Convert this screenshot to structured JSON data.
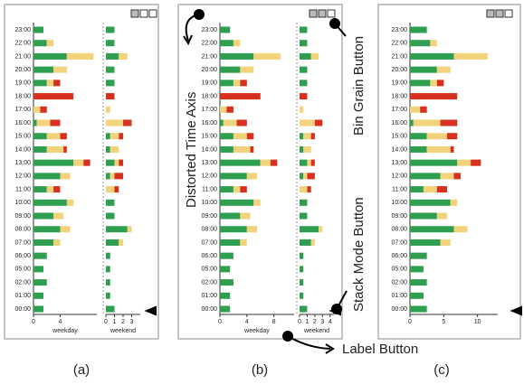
{
  "annotations": [
    "Distorted Time Axis",
    "Bin Grain Button",
    "Stack Mode Button",
    "Label Button"
  ],
  "panels": [
    {
      "caption": "(a)",
      "hours": [
        "23:00",
        "22:00",
        "21:00",
        "20:00",
        "19:00",
        "18:00",
        "17:00",
        "16:00",
        "15:00",
        "14:00",
        "13:00",
        "12:00",
        "11:00",
        "10:00",
        "09:00",
        "08:00",
        "07:00",
        "06:00",
        "05:00",
        "02:00",
        "01:00",
        "00:00"
      ],
      "plots": [
        {
          "axis_label": "weekday",
          "xlim": [
            0,
            9.5
          ],
          "xticks": [
            0,
            4
          ],
          "series": [
            {
              "color": "#2e9e4f",
              "values": [
                1.5,
                2,
                5,
                3,
                2,
                0,
                0,
                0.5,
                2,
                2,
                6,
                4,
                2,
                5,
                3,
                4,
                3,
                2,
                1.5,
                2,
                1.5,
                1.5
              ]
            },
            {
              "color": "#f2d27a",
              "values": [
                0,
                1,
                4,
                2,
                1,
                0,
                1,
                2,
                2,
                2.5,
                1.5,
                1.5,
                1,
                1,
                1.5,
                1.5,
                1,
                0,
                0,
                0,
                0,
                0
              ]
            },
            {
              "color": "#d7301f",
              "values": [
                0,
                0,
                0,
                0,
                1,
                6,
                1,
                1.5,
                1,
                0.5,
                1,
                0,
                1,
                0,
                0,
                0,
                0,
                0,
                0,
                0,
                0,
                0
              ]
            }
          ]
        },
        {
          "axis_label": "weekend",
          "xlim": [
            0,
            4
          ],
          "xticks": [
            0,
            1,
            2,
            3
          ],
          "series": [
            {
              "color": "#2e9e4f",
              "values": [
                1,
                1,
                1.5,
                1,
                1,
                0,
                0,
                0,
                0.5,
                0.5,
                1,
                0.5,
                0,
                1,
                1,
                2.5,
                1.5,
                0.5,
                0.5,
                0.5,
                0.5,
                1
              ]
            },
            {
              "color": "#f2d27a",
              "values": [
                0,
                0,
                1,
                0,
                0,
                0,
                0.5,
                2,
                1,
                1,
                0.5,
                0.5,
                1,
                0,
                0,
                0.5,
                0.5,
                0,
                0,
                0,
                0,
                0
              ]
            },
            {
              "color": "#d7301f",
              "values": [
                0,
                0,
                0,
                0,
                0,
                1,
                0,
                1,
                0.5,
                0,
                0.5,
                1,
                0.5,
                0,
                0,
                0,
                0,
                0,
                0,
                0,
                0,
                0
              ]
            }
          ]
        }
      ]
    },
    {
      "caption": "(b)",
      "hours": [
        "23:00",
        "22:00",
        "21:00",
        "20:00",
        "19:00",
        "18:00",
        "17:00",
        "16:00",
        "15:00",
        "14:00",
        "13:00",
        "12:00",
        "11:00",
        "10:00",
        "09:00",
        "08:00",
        "07:00",
        "06:00",
        "05:00",
        "02:00",
        "01:00",
        "00:00"
      ],
      "plots": [
        {
          "axis_label": "weekday",
          "xlim": [
            0,
            11
          ],
          "xticks": [
            0,
            4,
            8
          ],
          "series": [
            {
              "color": "#2e9e4f",
              "values": [
                1.5,
                2,
                5,
                3,
                2,
                0,
                0,
                0.5,
                2,
                2,
                6,
                4,
                2,
                5,
                3,
                4,
                3,
                2,
                1.5,
                2,
                1.5,
                1.5
              ]
            },
            {
              "color": "#f2d27a",
              "values": [
                0,
                1,
                4,
                2,
                1,
                0,
                1,
                2,
                2,
                2.5,
                1.5,
                1.5,
                1,
                1,
                1.5,
                1.5,
                1,
                0,
                0,
                0,
                0,
                0
              ]
            },
            {
              "color": "#d7301f",
              "values": [
                0,
                0,
                0,
                0,
                1,
                6,
                1,
                1.5,
                1,
                0.5,
                1,
                0,
                1,
                0,
                0,
                0,
                0,
                0,
                0,
                0,
                0,
                0
              ]
            }
          ]
        },
        {
          "axis_label": "weekend",
          "xlim": [
            0,
            4.5
          ],
          "xticks": [
            0,
            1,
            2,
            3,
            4
          ],
          "series": [
            {
              "color": "#2e9e4f",
              "values": [
                1,
                1,
                1.5,
                1,
                1,
                0,
                0,
                0,
                0.5,
                0.5,
                1,
                0.5,
                0,
                1,
                1,
                2.5,
                1.5,
                0.5,
                0.5,
                0.5,
                0.5,
                1
              ]
            },
            {
              "color": "#f2d27a",
              "values": [
                0,
                0,
                1,
                0,
                0,
                0,
                0.5,
                2,
                1,
                1,
                0.5,
                0.5,
                1,
                0,
                0,
                0.5,
                0.5,
                0,
                0,
                0,
                0,
                0
              ]
            },
            {
              "color": "#d7301f",
              "values": [
                0,
                0,
                0,
                0,
                0,
                1,
                0,
                1,
                0.5,
                0,
                0.5,
                1,
                0.5,
                0,
                0,
                0,
                0,
                0,
                0,
                0,
                0,
                0
              ]
            }
          ]
        }
      ]
    },
    {
      "caption": "(c)",
      "hours": [
        "23:00",
        "22:00",
        "21:00",
        "20:00",
        "19:00",
        "18:00",
        "17:00",
        "16:00",
        "15:00",
        "14:00",
        "13:00",
        "12:00",
        "11:00",
        "10:00",
        "09:00",
        "08:00",
        "07:00",
        "06:00",
        "05:00",
        "02:00",
        "01:00",
        "00:00"
      ],
      "plots": [
        {
          "xlim": [
            0,
            13
          ],
          "xticks": [
            0,
            5,
            10
          ],
          "series": [
            {
              "color": "#2e9e4f",
              "values": [
                2.5,
                3,
                6.5,
                4,
                3,
                0,
                0,
                0.5,
                2.5,
                2.5,
                7,
                4.5,
                2,
                6,
                4,
                6.5,
                4.5,
                2.5,
                2,
                2.5,
                2,
                2.5
              ]
            },
            {
              "color": "#f2d27a",
              "values": [
                0,
                1,
                5,
                2,
                1,
                0,
                1.5,
                4,
                3,
                3.5,
                2,
                2,
                2,
                1,
                1.5,
                2,
                1.5,
                0,
                0,
                0,
                0,
                0
              ]
            },
            {
              "color": "#d7301f",
              "values": [
                0,
                0,
                0,
                0,
                1,
                7,
                1,
                2.5,
                1.5,
                0.5,
                1.5,
                1,
                1.5,
                0,
                0,
                0,
                0,
                0,
                0,
                0,
                0,
                0
              ]
            }
          ]
        }
      ]
    }
  ]
}
